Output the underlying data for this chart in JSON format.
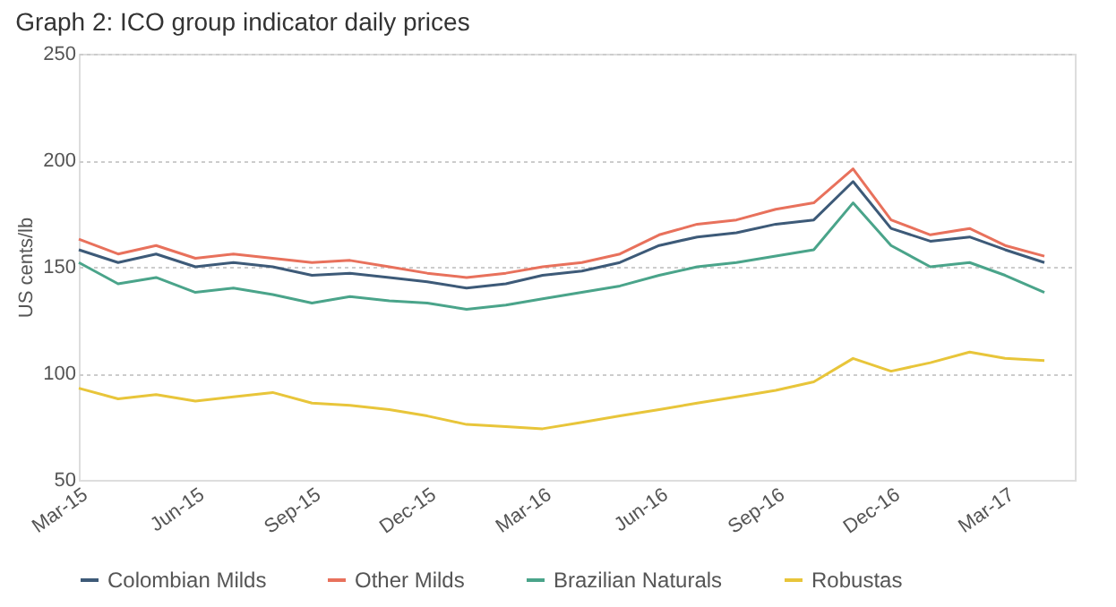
{
  "chart_data": {
    "type": "line",
    "title": "Graph 2: ICO group indicator daily prices",
    "ylabel": "US cents/lb",
    "x": [
      "2015-03-01",
      "2015-04-01",
      "2015-05-01",
      "2015-06-01",
      "2015-07-01",
      "2015-08-01",
      "2015-09-01",
      "2015-10-01",
      "2015-11-01",
      "2015-12-01",
      "2016-01-01",
      "2016-02-01",
      "2016-03-01",
      "2016-04-01",
      "2016-05-01",
      "2016-06-01",
      "2016-07-01",
      "2016-08-01",
      "2016-09-01",
      "2016-10-01",
      "2016-11-01",
      "2016-12-01",
      "2017-01-01",
      "2017-02-01",
      "2017-03-01",
      "2017-04-01"
    ],
    "series": [
      {
        "name": "Colombian Milds",
        "color": "#3d5a78",
        "values": [
          158,
          152,
          156,
          150,
          152,
          150,
          146,
          147,
          145,
          143,
          140,
          142,
          146,
          148,
          152,
          160,
          164,
          166,
          170,
          172,
          190,
          168,
          162,
          164,
          158,
          152
        ]
      },
      {
        "name": "Other Milds",
        "color": "#e8715c",
        "values": [
          163,
          156,
          160,
          154,
          156,
          154,
          152,
          153,
          150,
          147,
          145,
          147,
          150,
          152,
          156,
          165,
          170,
          172,
          177,
          180,
          196,
          172,
          165,
          168,
          160,
          155
        ]
      },
      {
        "name": "Brazilian Naturals",
        "color": "#4aa48a",
        "values": [
          152,
          142,
          145,
          138,
          140,
          137,
          133,
          136,
          134,
          133,
          130,
          132,
          135,
          138,
          141,
          146,
          150,
          152,
          155,
          158,
          180,
          160,
          150,
          152,
          146,
          138
        ]
      },
      {
        "name": "Robustas",
        "color": "#e8c53a",
        "values": [
          93,
          88,
          90,
          87,
          89,
          91,
          86,
          85,
          83,
          80,
          76,
          75,
          74,
          77,
          80,
          83,
          86,
          89,
          92,
          96,
          107,
          101,
          105,
          110,
          107,
          106
        ]
      }
    ],
    "ylim": [
      50,
      250
    ],
    "yticks": [
      50,
      100,
      150,
      200,
      250
    ],
    "xlim": [
      "2015-03-01",
      "2017-04-25"
    ],
    "xticks": [
      {
        "value": "2015-03-01",
        "label": "Mar-15"
      },
      {
        "value": "2015-06-01",
        "label": "Jun-15"
      },
      {
        "value": "2015-09-01",
        "label": "Sep-15"
      },
      {
        "value": "2015-12-01",
        "label": "Dec-15"
      },
      {
        "value": "2016-03-01",
        "label": "Mar-16"
      },
      {
        "value": "2016-06-01",
        "label": "Jun-16"
      },
      {
        "value": "2016-09-01",
        "label": "Sep-16"
      },
      {
        "value": "2016-12-01",
        "label": "Dec-16"
      },
      {
        "value": "2017-03-01",
        "label": "Mar-17"
      }
    ],
    "grid": "y",
    "legend": "bottom",
    "line_style": "solid",
    "marker": "none"
  }
}
